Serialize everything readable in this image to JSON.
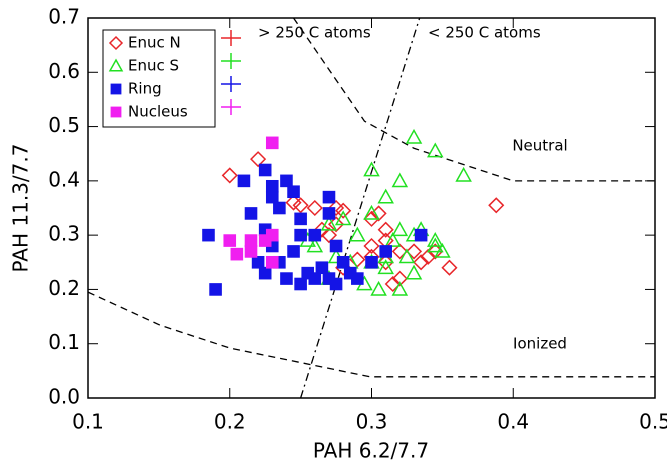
{
  "chart_data": {
    "type": "scatter",
    "x_label": "PAH 6.2/7.7",
    "y_label": "PAH 11.3/7.7",
    "xlim": [
      0.1,
      0.5
    ],
    "ylim": [
      0,
      0.7
    ],
    "xticks": [
      0.1,
      0.2,
      0.3,
      0.4,
      0.5
    ],
    "yticks": [
      {
        "value": 0,
        "label": "0.0"
      },
      0.1,
      0.2,
      0.3,
      0.4,
      0.5,
      0.6,
      0.7
    ],
    "legend": "top-left",
    "annotations": [
      "> 250 C atoms",
      "< 250 C atoms",
      "Neutral",
      "Ionized"
    ],
    "boundaries": [
      {
        "style": "dashed",
        "x": [
          0.245,
          0.295,
          0.33,
          0.4,
          0.5
        ],
        "y": [
          0.7,
          0.51,
          0.46,
          0.4,
          0.4
        ]
      },
      {
        "style": "dashed",
        "x": [
          0.1,
          0.151,
          0.2,
          0.299,
          0.5
        ],
        "y": [
          0.195,
          0.134,
          0.092,
          0.039,
          0.039
        ]
      },
      {
        "style": "dashdot",
        "x": [
          0.25,
          0.334
        ],
        "y": [
          0,
          0.7
        ]
      }
    ],
    "series": [
      {
        "name": "Enuc N",
        "marker": "diamond",
        "color": "#e8262a",
        "x": [
          0.2,
          0.22,
          0.245,
          0.25,
          0.26,
          0.275,
          0.28,
          0.265,
          0.27,
          0.275,
          0.3,
          0.305,
          0.31,
          0.3,
          0.31,
          0.32,
          0.33,
          0.34,
          0.345,
          0.355,
          0.315,
          0.32,
          0.29,
          0.3,
          0.388,
          0.335,
          0.28,
          0.31
        ],
        "values": [
          0.41,
          0.44,
          0.36,
          0.355,
          0.35,
          0.35,
          0.345,
          0.31,
          0.3,
          0.32,
          0.33,
          0.34,
          0.31,
          0.28,
          0.29,
          0.27,
          0.27,
          0.26,
          0.27,
          0.24,
          0.21,
          0.22,
          0.255,
          0.26,
          0.355,
          0.25,
          0.24,
          0.25
        ]
      },
      {
        "name": "Enuc S",
        "marker": "triangle",
        "color": "#22e022",
        "x": [
          0.33,
          0.345,
          0.365,
          0.32,
          0.3,
          0.31,
          0.28,
          0.29,
          0.27,
          0.255,
          0.26,
          0.275,
          0.285,
          0.3,
          0.295,
          0.305,
          0.32,
          0.33,
          0.31,
          0.315,
          0.33,
          0.335,
          0.345,
          0.35,
          0.345,
          0.325,
          0.31,
          0.27,
          0.32,
          0.3
        ],
        "values": [
          0.48,
          0.455,
          0.41,
          0.4,
          0.42,
          0.37,
          0.33,
          0.3,
          0.32,
          0.29,
          0.28,
          0.26,
          0.25,
          0.25,
          0.21,
          0.2,
          0.2,
          0.23,
          0.24,
          0.29,
          0.3,
          0.31,
          0.28,
          0.27,
          0.29,
          0.26,
          0.26,
          0.22,
          0.31,
          0.34
        ]
      },
      {
        "name": "Ring",
        "marker": "square",
        "color": "#1414e6",
        "x": [
          0.185,
          0.19,
          0.225,
          0.23,
          0.23,
          0.235,
          0.24,
          0.245,
          0.21,
          0.215,
          0.225,
          0.23,
          0.235,
          0.22,
          0.225,
          0.24,
          0.25,
          0.255,
          0.26,
          0.265,
          0.27,
          0.25,
          0.25,
          0.26,
          0.27,
          0.27,
          0.275,
          0.28,
          0.285,
          0.275,
          0.29,
          0.245,
          0.335,
          0.3,
          0.31
        ],
        "values": [
          0.3,
          0.2,
          0.42,
          0.39,
          0.37,
          0.35,
          0.4,
          0.38,
          0.4,
          0.34,
          0.31,
          0.28,
          0.25,
          0.25,
          0.23,
          0.22,
          0.21,
          0.23,
          0.22,
          0.24,
          0.22,
          0.3,
          0.33,
          0.3,
          0.37,
          0.34,
          0.28,
          0.25,
          0.23,
          0.21,
          0.22,
          0.27,
          0.3,
          0.25,
          0.27
        ]
      },
      {
        "name": "Nucleus",
        "marker": "square",
        "color": "#f01ef0",
        "x": [
          0.23,
          0.2,
          0.205,
          0.215,
          0.225,
          0.23,
          0.23,
          0.215
        ],
        "values": [
          0.47,
          0.29,
          0.265,
          0.29,
          0.29,
          0.3,
          0.25,
          0.27
        ]
      }
    ]
  }
}
